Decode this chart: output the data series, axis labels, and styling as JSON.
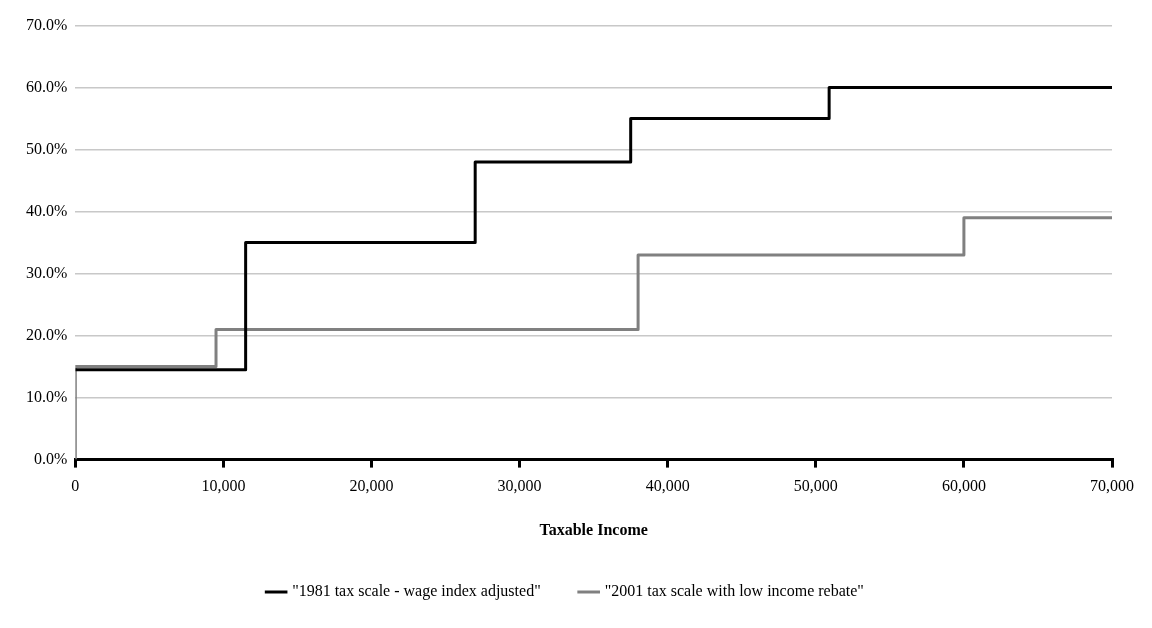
{
  "chart_data": {
    "type": "step",
    "xlabel": "Taxable Income",
    "xlim": [
      0,
      70000
    ],
    "ylim": [
      0,
      70
    ],
    "xticks": [
      {
        "value": 0,
        "label": "0"
      },
      {
        "value": 10000,
        "label": "10,000"
      },
      {
        "value": 20000,
        "label": "20,000"
      },
      {
        "value": 30000,
        "label": "30,000"
      },
      {
        "value": 40000,
        "label": "40,000"
      },
      {
        "value": 50000,
        "label": "50,000"
      },
      {
        "value": 60000,
        "label": "60,000"
      },
      {
        "value": 70000,
        "label": "70,000"
      }
    ],
    "yticks": [
      {
        "value": 0,
        "label": "0.0%"
      },
      {
        "value": 10,
        "label": "10.0%"
      },
      {
        "value": 20,
        "label": "20.0%"
      },
      {
        "value": 30,
        "label": "30.0%"
      },
      {
        "value": 40,
        "label": "40.0%"
      },
      {
        "value": 50,
        "label": "50.0%"
      },
      {
        "value": 60,
        "label": "60.0%"
      },
      {
        "value": 70,
        "label": "70.0%"
      }
    ],
    "grid": "y",
    "legend": "bottom",
    "marker": "none",
    "line_style": "solid",
    "series": [
      {
        "name": "\"1981 tax scale - wage index adjusted\"",
        "color": "#000000",
        "x": [
          0,
          11500,
          27000,
          37500,
          50900,
          70000
        ],
        "values": [
          14.5,
          35,
          48,
          55,
          60,
          60
        ]
      },
      {
        "name": "\"2001 tax scale with low income rebate\"",
        "color": "#808080",
        "x": [
          0,
          0,
          9500,
          38000,
          60000,
          70000
        ],
        "values": [
          0,
          15,
          21,
          33,
          39,
          39
        ]
      }
    ]
  }
}
